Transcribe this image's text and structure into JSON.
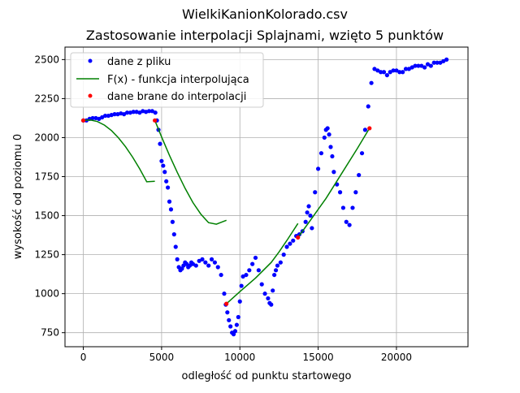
{
  "chart_data": {
    "type": "line",
    "title": "WielkiKanionKolorado.csv",
    "subtitle": "Zastosowanie interpolacji Splajnami, wzięto 5 punktów",
    "xlabel": "odległość od punktu startowego",
    "ylabel": "wysokość od poziomu 0",
    "xlim": [
      -1170,
      24570
    ],
    "ylim": [
      660,
      2580
    ],
    "x_ticks": [
      0,
      5000,
      10000,
      15000,
      20000
    ],
    "y_ticks": [
      750,
      1000,
      1250,
      1500,
      1750,
      2000,
      2250,
      2500
    ],
    "grid": true,
    "legend_position": "top-left",
    "series": [
      {
        "name": "dane z pliku",
        "kind": "markers",
        "color": "#0000ff",
        "x": [
          0,
          200,
          400,
          600,
          800,
          1000,
          1200,
          1400,
          1600,
          1800,
          2000,
          2200,
          2400,
          2600,
          2800,
          3000,
          3200,
          3400,
          3600,
          3800,
          4000,
          4200,
          4400,
          4600,
          4700,
          4800,
          4900,
          5000,
          5100,
          5200,
          5300,
          5400,
          5500,
          5600,
          5700,
          5800,
          5900,
          6000,
          6100,
          6200,
          6300,
          6400,
          6500,
          6600,
          6700,
          6800,
          6900,
          7000,
          7200,
          7400,
          7600,
          7800,
          8000,
          8200,
          8400,
          8600,
          8800,
          9000,
          9100,
          9200,
          9300,
          9400,
          9500,
          9600,
          9700,
          9800,
          9900,
          10000,
          10100,
          10200,
          10400,
          10600,
          10800,
          11000,
          11200,
          11400,
          11600,
          11800,
          11900,
          12000,
          12100,
          12200,
          12300,
          12400,
          12600,
          12800,
          13000,
          13200,
          13400,
          13600,
          13800,
          14000,
          14200,
          14300,
          14400,
          14500,
          14600,
          14800,
          15000,
          15200,
          15400,
          15500,
          15600,
          15700,
          15800,
          15900,
          16000,
          16200,
          16400,
          16600,
          16800,
          17000,
          17200,
          17400,
          17600,
          17800,
          18000,
          18200,
          18400,
          18600,
          18800,
          19000,
          19200,
          19400,
          19600,
          19800,
          20000,
          20200,
          20400,
          20600,
          20800,
          21000,
          21200,
          21400,
          21600,
          21800,
          22000,
          22200,
          22400,
          22600,
          22800,
          23000,
          23200
        ],
        "y": [
          2110,
          2110,
          2120,
          2125,
          2125,
          2120,
          2130,
          2140,
          2140,
          2145,
          2150,
          2150,
          2155,
          2150,
          2160,
          2160,
          2165,
          2165,
          2160,
          2170,
          2165,
          2170,
          2170,
          2160,
          2110,
          2050,
          1960,
          1850,
          1820,
          1780,
          1720,
          1680,
          1590,
          1540,
          1460,
          1380,
          1300,
          1220,
          1170,
          1150,
          1160,
          1180,
          1200,
          1190,
          1170,
          1180,
          1200,
          1190,
          1180,
          1210,
          1220,
          1200,
          1180,
          1220,
          1200,
          1170,
          1120,
          1000,
          930,
          880,
          830,
          790,
          750,
          740,
          760,
          800,
          850,
          950,
          1050,
          1110,
          1120,
          1150,
          1190,
          1230,
          1150,
          1060,
          1000,
          970,
          940,
          930,
          1020,
          1120,
          1150,
          1180,
          1200,
          1250,
          1300,
          1320,
          1340,
          1370,
          1380,
          1400,
          1460,
          1520,
          1560,
          1500,
          1420,
          1650,
          1800,
          1900,
          2000,
          2050,
          2060,
          2020,
          1940,
          1880,
          1780,
          1700,
          1650,
          1550,
          1460,
          1440,
          1550,
          1650,
          1760,
          1900,
          2050,
          2200,
          2350,
          2440,
          2430,
          2420,
          2420,
          2400,
          2420,
          2430,
          2430,
          2420,
          2420,
          2440,
          2440,
          2450,
          2460,
          2460,
          2460,
          2450,
          2470,
          2460,
          2480,
          2480,
          2480,
          2490,
          2500
        ]
      },
      {
        "name": "F(x) - funkcja interpolująca",
        "kind": "line",
        "color": "#008000",
        "segments": [
          {
            "x": [
              0,
              450,
              900,
              1350,
              1800,
              2250,
              2700,
              3150,
              3600,
              4050,
              4570
            ],
            "y": [
              2110,
              2113,
              2103,
              2080,
              2045,
              1998,
              1941,
              1875,
              1800,
              1717,
              1720
            ]
          },
          {
            "x": [
              4570,
              5000,
              5500,
              6000,
              6500,
              7000,
              7500,
              8000,
              8500,
              9000,
              9140
            ],
            "y": [
              2110,
              2004,
              1887,
              1777,
              1675,
              1584,
              1510,
              1455,
              1445,
              1465,
              1470
            ]
          },
          {
            "x": [
              9140,
              10000,
              11000,
              12000,
              12500,
              13000,
              13710
            ],
            "y": [
              935,
              1013,
              1100,
              1200,
              1267,
              1341,
              1450
            ]
          },
          {
            "x": [
              13710,
              14500,
              15500,
              16500,
              17500,
              18280
            ],
            "y": [
              1360,
              1470,
              1610,
              1770,
              1930,
              2060
            ]
          }
        ]
      },
      {
        "name": "dane brane do interpolacji",
        "kind": "markers",
        "color": "#ff0000",
        "x": [
          0,
          4570,
          9140,
          13710,
          18280
        ],
        "y": [
          2110,
          2110,
          935,
          1360,
          2060
        ]
      }
    ]
  }
}
